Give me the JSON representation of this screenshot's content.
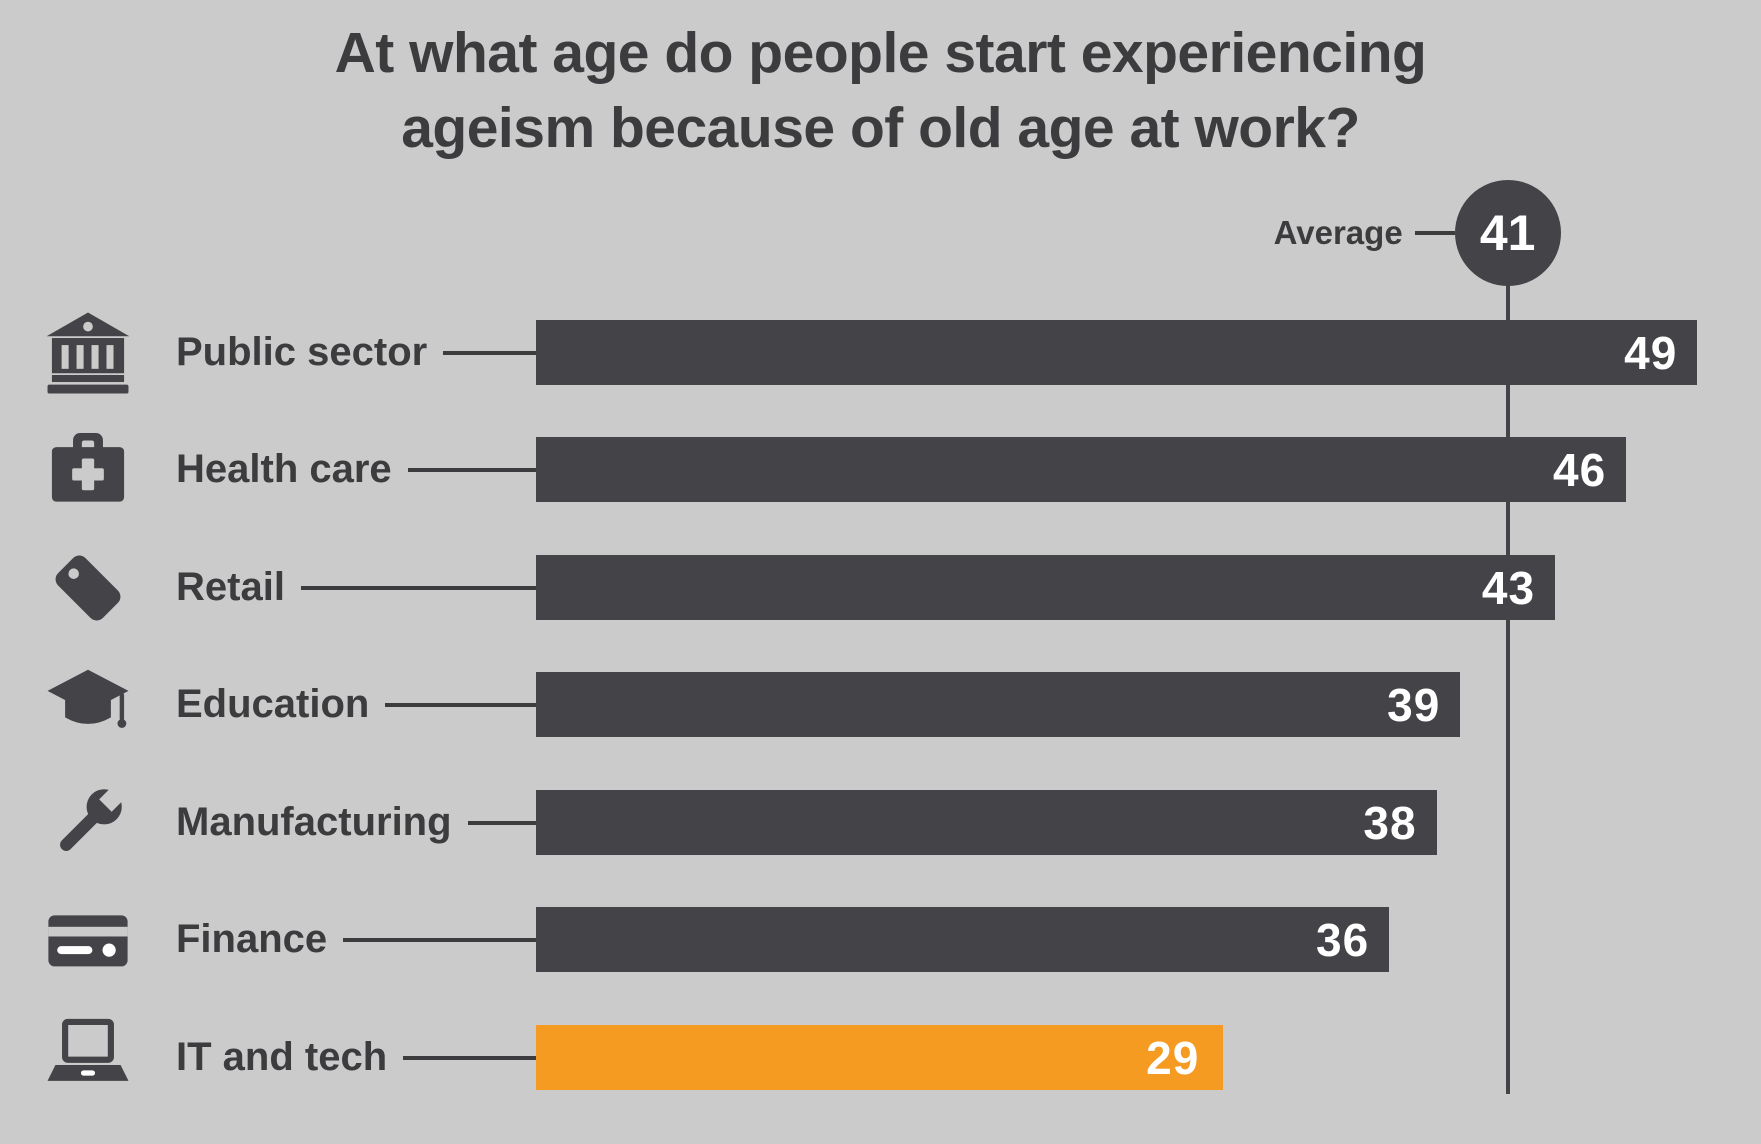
{
  "title": {
    "full": "At what age do people start experiencing ageism because of old age at work?",
    "lines": [
      "At what age do people start experiencing",
      "ageism because of old age at work?"
    ]
  },
  "average": {
    "label": "Average",
    "value": 41
  },
  "colors": {
    "background": "#cbcbcb",
    "bar": "#444347",
    "accent": "#f59b22",
    "text": "#3c3b3e",
    "value-text": "#ffffff"
  },
  "rows": [
    {
      "label": "Public sector",
      "value": 49,
      "icon": "bank-icon",
      "highlight": false
    },
    {
      "label": "Health care",
      "value": 46,
      "icon": "first-aid-kit-icon",
      "highlight": false
    },
    {
      "label": "Retail",
      "value": 43,
      "icon": "price-tag-icon",
      "highlight": false
    },
    {
      "label": "Education",
      "value": 39,
      "icon": "graduation-cap-icon",
      "highlight": false
    },
    {
      "label": "Manufacturing",
      "value": 38,
      "icon": "wrench-icon",
      "highlight": false
    },
    {
      "label": "Finance",
      "value": 36,
      "icon": "credit-card-icon",
      "highlight": false
    },
    {
      "label": "IT and tech",
      "value": 29,
      "icon": "laptop-icon",
      "highlight": true
    }
  ],
  "chart_data": {
    "type": "bar",
    "orientation": "horizontal",
    "title": "At what age do people start experiencing ageism because of old age at work?",
    "categories": [
      "Public sector",
      "Health care",
      "Retail",
      "Education",
      "Manufacturing",
      "Finance",
      "IT and tech"
    ],
    "values": [
      49,
      46,
      43,
      39,
      38,
      36,
      29
    ],
    "average": 41,
    "average_label": "Average",
    "highlight_category": "IT and tech",
    "highlight_color": "#f59b22",
    "bar_color": "#444347",
    "xlabel": "",
    "ylabel": "",
    "xlim": [
      0,
      51
    ],
    "grid": false,
    "legend": false,
    "annotations": [
      "Average reference line at 41 with circled value"
    ]
  }
}
